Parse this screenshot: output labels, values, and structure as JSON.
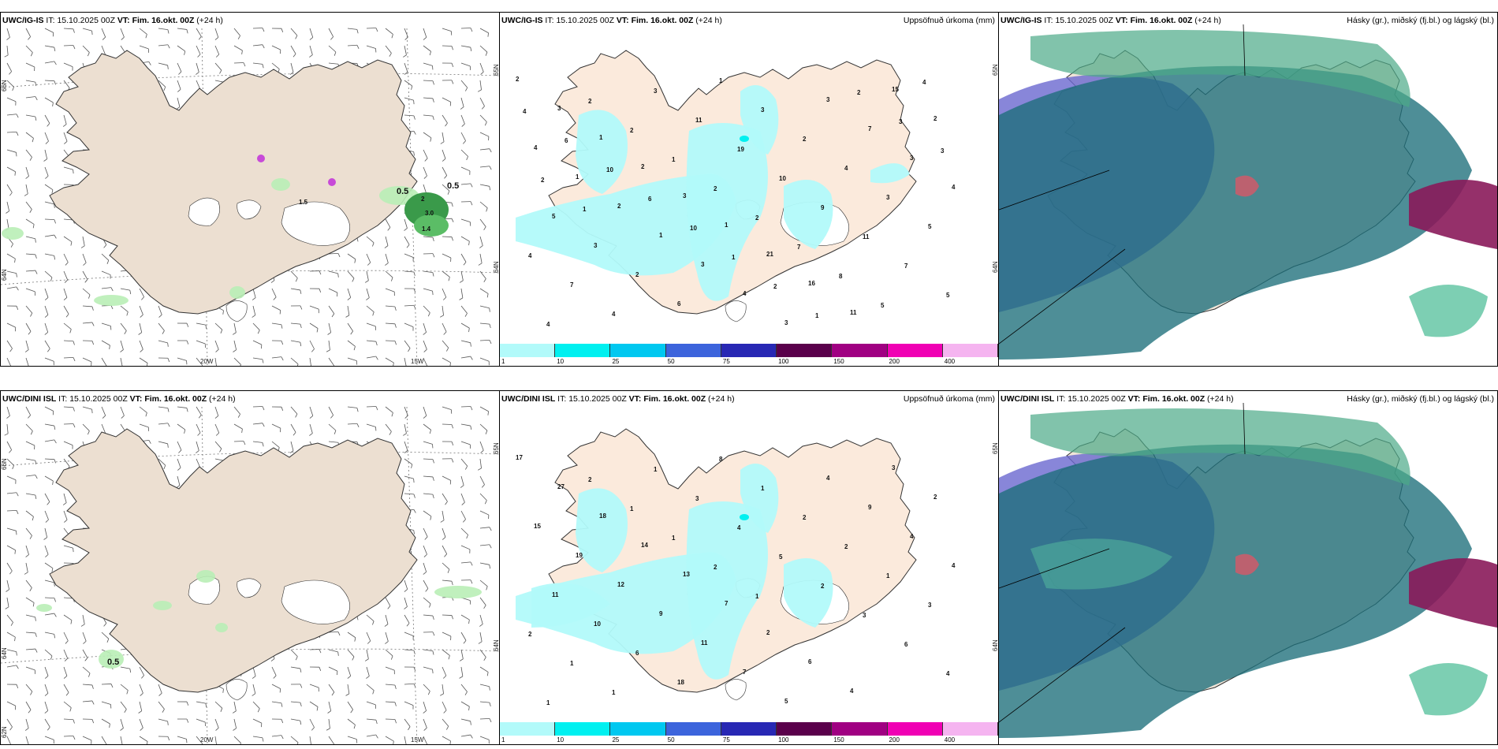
{
  "rows": [
    {
      "model": "UWC/IG-IS",
      "issue_label": "IT:",
      "issue_time": "15.10.2025 00Z",
      "valid_label": "VT:",
      "valid_time": "Fim. 16.okt. 00Z",
      "lead": "(+24 h)"
    },
    {
      "model": "UWC/DINI ISL",
      "issue_label": "IT:",
      "issue_time": "15.10.2025 00Z",
      "valid_label": "VT:",
      "valid_time": "Fim. 16.okt. 00Z",
      "lead": "(+24 h)"
    }
  ],
  "precip_title": "Uppsöfnuð úrkoma (mm)",
  "cloud_title": "Hásky (gr.), miðský (fj.bl.) og lágský (bl.)",
  "axis": {
    "lon_20w": "20W",
    "lon_15w": "15W",
    "lat_65n": "65N",
    "lat_64n": "64N",
    "lat_66n": "66N",
    "lat_62n": "62N"
  },
  "colorbar": {
    "ticks": [
      "1",
      "10",
      "25",
      "50",
      "75",
      "100",
      "150",
      "200",
      "400"
    ],
    "colors": [
      "#b2fafa",
      "#00f0f0",
      "#00c8f0",
      "#3c64dc",
      "#2828b4",
      "#5a004b",
      "#a00082",
      "#f000b4",
      "#f5b4f0"
    ]
  },
  "wind_labels_top": [
    "0.5",
    "0.5",
    "1.5",
    "2",
    "3.0",
    "1.4"
  ],
  "wind_labels_bottom": [
    "0.5"
  ],
  "precip_top": [
    "2",
    "3",
    "1",
    "2",
    "3",
    "1",
    "21",
    "16",
    "11",
    "15",
    "2",
    "4",
    "1",
    "2",
    "1",
    "3",
    "4",
    "3",
    "3",
    "7",
    "3",
    "4",
    "5",
    "3",
    "2",
    "6",
    "1",
    "3",
    "2",
    "4",
    "3",
    "5",
    "4",
    "7",
    "4",
    "3",
    "11",
    "19",
    "10",
    "9",
    "11",
    "7",
    "5",
    "4",
    "2",
    "2",
    "1",
    "2",
    "2",
    "7",
    "8",
    "5",
    "4",
    "4",
    "6",
    "10",
    "6",
    "10",
    "1",
    "2",
    "1",
    "2",
    "3",
    "3",
    "2",
    "1"
  ],
  "precip_bottom": [
    "17",
    "27",
    "18",
    "14",
    "13",
    "7",
    "2",
    "6",
    "4",
    "3",
    "2",
    "15",
    "19",
    "12",
    "9",
    "11",
    "7",
    "5",
    "4",
    "9",
    "4",
    "4",
    "11",
    "10",
    "6",
    "18",
    "8",
    "1",
    "2",
    "2",
    "1",
    "3",
    "2",
    "1",
    "1",
    "1",
    "3",
    "4",
    "5",
    "2",
    "3",
    "6",
    "4",
    "1",
    "2",
    "1",
    "1",
    "2",
    "1"
  ]
}
